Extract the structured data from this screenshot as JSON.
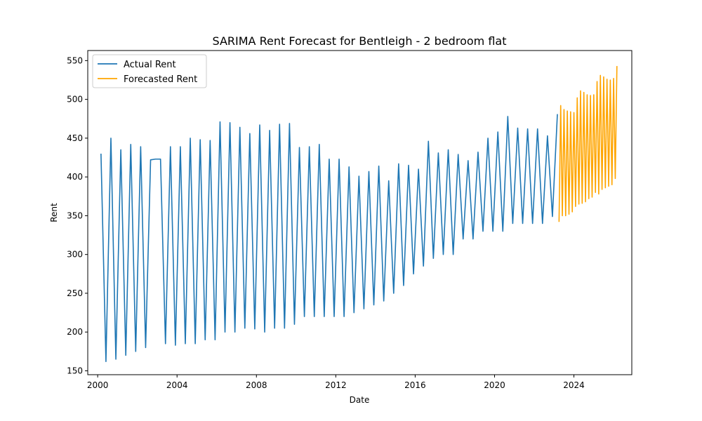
{
  "chart_data": {
    "type": "line",
    "title": "SARIMA Rent Forecast for Bentleigh - 2 bedroom flat",
    "xlabel": "Date",
    "ylabel": "Rent",
    "xlim": [
      "1999-07-01",
      "2026-12-01"
    ],
    "ylim": [
      145,
      563
    ],
    "x_ticks": [
      "2000",
      "2004",
      "2008",
      "2012",
      "2016",
      "2020",
      "2024"
    ],
    "y_ticks": [
      150,
      200,
      250,
      300,
      350,
      400,
      450,
      500,
      550
    ],
    "grid": false,
    "legend_position": "upper-left",
    "series": [
      {
        "name": "Actual Rent",
        "color": "#1f77b4",
        "points": [
          [
            "2000-03-01",
            430
          ],
          [
            "2000-06-01",
            162
          ],
          [
            "2000-09-01",
            450
          ],
          [
            "2000-12-01",
            165
          ],
          [
            "2001-03-01",
            435
          ],
          [
            "2001-06-01",
            170
          ],
          [
            "2001-09-01",
            442
          ],
          [
            "2001-12-01",
            175
          ],
          [
            "2002-03-01",
            439
          ],
          [
            "2002-06-01",
            180
          ],
          [
            "2002-09-01",
            422
          ],
          [
            "2002-12-01",
            423
          ],
          [
            "2003-03-01",
            423
          ],
          [
            "2003-06-01",
            185
          ],
          [
            "2003-09-01",
            439
          ],
          [
            "2003-12-01",
            183
          ],
          [
            "2004-03-01",
            439
          ],
          [
            "2004-06-01",
            185
          ],
          [
            "2004-09-01",
            450
          ],
          [
            "2004-12-01",
            185
          ],
          [
            "2005-03-01",
            448
          ],
          [
            "2005-06-01",
            190
          ],
          [
            "2005-09-01",
            447
          ],
          [
            "2005-12-01",
            190
          ],
          [
            "2006-03-01",
            471
          ],
          [
            "2006-06-01",
            200
          ],
          [
            "2006-09-01",
            470
          ],
          [
            "2006-12-01",
            200
          ],
          [
            "2007-03-01",
            464
          ],
          [
            "2007-06-01",
            205
          ],
          [
            "2007-09-01",
            456
          ],
          [
            "2007-12-01",
            204
          ],
          [
            "2008-03-01",
            467
          ],
          [
            "2008-06-01",
            200
          ],
          [
            "2008-09-01",
            460
          ],
          [
            "2008-12-01",
            205
          ],
          [
            "2009-03-01",
            468
          ],
          [
            "2009-06-01",
            205
          ],
          [
            "2009-09-01",
            469
          ],
          [
            "2009-12-01",
            210
          ],
          [
            "2010-03-01",
            438
          ],
          [
            "2010-06-01",
            220
          ],
          [
            "2010-09-01",
            439
          ],
          [
            "2010-12-01",
            220
          ],
          [
            "2011-03-01",
            442
          ],
          [
            "2011-06-01",
            220
          ],
          [
            "2011-09-01",
            423
          ],
          [
            "2011-12-01",
            220
          ],
          [
            "2012-03-01",
            423
          ],
          [
            "2012-06-01",
            220
          ],
          [
            "2012-09-01",
            413
          ],
          [
            "2012-12-01",
            225
          ],
          [
            "2013-03-01",
            401
          ],
          [
            "2013-06-01",
            230
          ],
          [
            "2013-09-01",
            407
          ],
          [
            "2013-12-01",
            235
          ],
          [
            "2014-03-01",
            414
          ],
          [
            "2014-06-01",
            240
          ],
          [
            "2014-09-01",
            395
          ],
          [
            "2014-12-01",
            250
          ],
          [
            "2015-03-01",
            417
          ],
          [
            "2015-06-01",
            260
          ],
          [
            "2015-09-01",
            415
          ],
          [
            "2015-12-01",
            275
          ],
          [
            "2016-03-01",
            410
          ],
          [
            "2016-06-01",
            285
          ],
          [
            "2016-09-01",
            446
          ],
          [
            "2016-12-01",
            295
          ],
          [
            "2017-03-01",
            431
          ],
          [
            "2017-06-01",
            300
          ],
          [
            "2017-09-01",
            435
          ],
          [
            "2017-12-01",
            300
          ],
          [
            "2018-03-01",
            429
          ],
          [
            "2018-06-01",
            320
          ],
          [
            "2018-09-01",
            421
          ],
          [
            "2018-12-01",
            320
          ],
          [
            "2019-03-01",
            432
          ],
          [
            "2019-06-01",
            330
          ],
          [
            "2019-09-01",
            450
          ],
          [
            "2019-12-01",
            330
          ],
          [
            "2020-03-01",
            458
          ],
          [
            "2020-06-01",
            330
          ],
          [
            "2020-09-01",
            478
          ],
          [
            "2020-12-01",
            340
          ],
          [
            "2021-03-01",
            463
          ],
          [
            "2021-06-01",
            340
          ],
          [
            "2021-09-01",
            462
          ],
          [
            "2021-12-01",
            340
          ],
          [
            "2022-03-01",
            462
          ],
          [
            "2022-06-01",
            340
          ],
          [
            "2022-09-01",
            453
          ],
          [
            "2022-12-01",
            349
          ],
          [
            "2023-03-01",
            481
          ]
        ]
      },
      {
        "name": "Forecasted Rent",
        "color": "#ffa500",
        "points": [
          [
            "2023-04-01",
            342
          ],
          [
            "2023-05-01",
            492
          ],
          [
            "2023-06-01",
            350
          ],
          [
            "2023-07-01",
            487
          ],
          [
            "2023-08-01",
            350
          ],
          [
            "2023-09-01",
            485
          ],
          [
            "2023-10-01",
            352
          ],
          [
            "2023-11-01",
            484
          ],
          [
            "2023-12-01",
            355
          ],
          [
            "2024-01-01",
            483
          ],
          [
            "2024-02-01",
            362
          ],
          [
            "2024-03-01",
            502
          ],
          [
            "2024-04-01",
            365
          ],
          [
            "2024-05-01",
            511
          ],
          [
            "2024-06-01",
            366
          ],
          [
            "2024-07-01",
            509
          ],
          [
            "2024-08-01",
            368
          ],
          [
            "2024-09-01",
            506
          ],
          [
            "2024-10-01",
            372
          ],
          [
            "2024-11-01",
            505
          ],
          [
            "2024-12-01",
            374
          ],
          [
            "2025-01-01",
            506
          ],
          [
            "2025-02-01",
            380
          ],
          [
            "2025-03-01",
            523
          ],
          [
            "2025-04-01",
            378
          ],
          [
            "2025-05-01",
            531
          ],
          [
            "2025-06-01",
            384
          ],
          [
            "2025-07-01",
            529
          ],
          [
            "2025-08-01",
            386
          ],
          [
            "2025-09-01",
            526
          ],
          [
            "2025-10-01",
            388
          ],
          [
            "2025-11-01",
            525
          ],
          [
            "2025-12-01",
            390
          ],
          [
            "2026-01-01",
            527
          ],
          [
            "2026-02-01",
            398
          ],
          [
            "2026-03-01",
            543
          ]
        ]
      }
    ]
  }
}
